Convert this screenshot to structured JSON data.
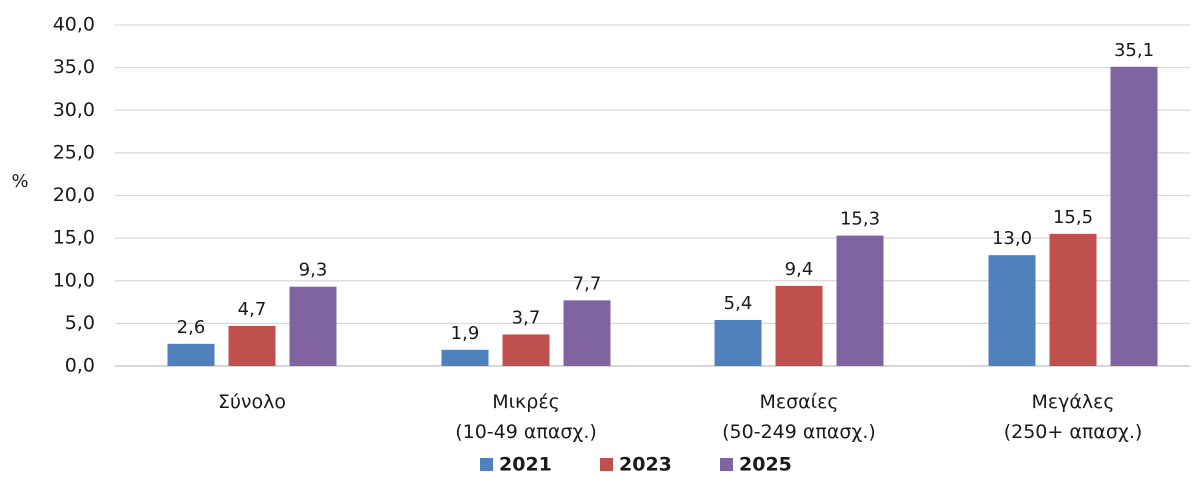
{
  "chart_data": {
    "type": "bar",
    "ylabel": "%",
    "ylim": [
      0,
      40
    ],
    "yticks": [
      "0,0",
      "5,0",
      "10,0",
      "15,0",
      "20,0",
      "25,0",
      "30,0",
      "35,0",
      "40,0"
    ],
    "ytick_values": [
      0,
      5,
      10,
      15,
      20,
      25,
      30,
      35,
      40
    ],
    "grid": true,
    "legend_position": "bottom",
    "categories": [
      [
        "Σύνολο"
      ],
      [
        "Μικρές",
        "(10-49 απασχ.)"
      ],
      [
        "Μεσαίες",
        "(50-249 απασχ.)"
      ],
      [
        "Μεγάλες",
        "(250+ απασχ.)"
      ]
    ],
    "series": [
      {
        "name": "2021",
        "color": "#4f81bd",
        "values": [
          2.6,
          1.9,
          5.4,
          13.0
        ],
        "labels": [
          "2,6",
          "1,9",
          "5,4",
          "13,0"
        ]
      },
      {
        "name": "2023",
        "color": "#c0504d",
        "values": [
          4.7,
          3.7,
          9.4,
          15.5
        ],
        "labels": [
          "4,7",
          "3,7",
          "9,4",
          "15,5"
        ]
      },
      {
        "name": "2025",
        "color": "#8064a2",
        "values": [
          9.3,
          7.7,
          15.3,
          35.1
        ],
        "labels": [
          "9,3",
          "7,7",
          "15,3",
          "35,1"
        ]
      }
    ]
  }
}
